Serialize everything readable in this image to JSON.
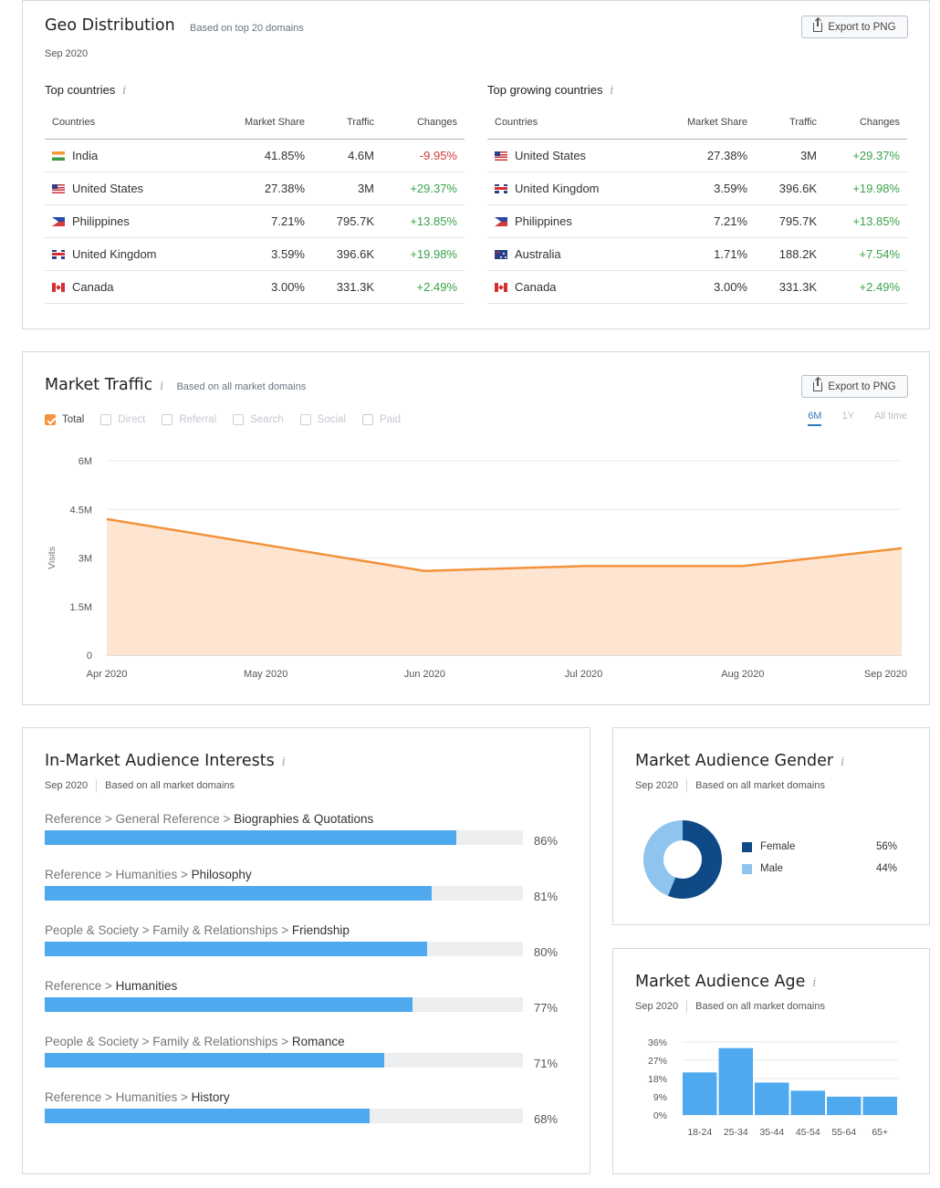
{
  "geo": {
    "title": "Geo Distribution",
    "subtitle": "Based on top 20 domains",
    "date": "Sep 2020",
    "export_label": "Export to PNG",
    "top_countries": {
      "title": "Top countries",
      "headers": [
        "Countries",
        "Market Share",
        "Traffic",
        "Changes"
      ],
      "rows": [
        {
          "flag": "in",
          "country": "India",
          "share": "41.85%",
          "traffic": "4.6M",
          "change": "-9.95%"
        },
        {
          "flag": "us",
          "country": "United States",
          "share": "27.38%",
          "traffic": "3M",
          "change": "+29.37%"
        },
        {
          "flag": "ph",
          "country": "Philippines",
          "share": "7.21%",
          "traffic": "795.7K",
          "change": "+13.85%"
        },
        {
          "flag": "uk",
          "country": "United Kingdom",
          "share": "3.59%",
          "traffic": "396.6K",
          "change": "+19.98%"
        },
        {
          "flag": "ca",
          "country": "Canada",
          "share": "3.00%",
          "traffic": "331.3K",
          "change": "+2.49%"
        }
      ]
    },
    "top_growing": {
      "title": "Top growing countries",
      "headers": [
        "Countries",
        "Market Share",
        "Traffic",
        "Changes"
      ],
      "rows": [
        {
          "flag": "us",
          "country": "United States",
          "share": "27.38%",
          "traffic": "3M",
          "change": "+29.37%"
        },
        {
          "flag": "uk",
          "country": "United Kingdom",
          "share": "3.59%",
          "traffic": "396.6K",
          "change": "+19.98%"
        },
        {
          "flag": "ph",
          "country": "Philippines",
          "share": "7.21%",
          "traffic": "795.7K",
          "change": "+13.85%"
        },
        {
          "flag": "au",
          "country": "Australia",
          "share": "1.71%",
          "traffic": "188.2K",
          "change": "+7.54%"
        },
        {
          "flag": "ca",
          "country": "Canada",
          "share": "3.00%",
          "traffic": "331.3K",
          "change": "+2.49%"
        }
      ]
    }
  },
  "traffic": {
    "title": "Market Traffic",
    "subtitle": "Based on all market domains",
    "export_label": "Export to PNG",
    "legend": [
      {
        "label": "Total",
        "checked": true
      },
      {
        "label": "Direct",
        "checked": false
      },
      {
        "label": "Referral",
        "checked": false
      },
      {
        "label": "Search",
        "checked": false
      },
      {
        "label": "Social",
        "checked": false
      },
      {
        "label": "Paid",
        "checked": false
      }
    ],
    "periods": [
      "6M",
      "1Y",
      "All time"
    ],
    "active_period": "6M",
    "line_color": "#f3923a",
    "fill_color": "#fde5d2"
  },
  "interests": {
    "title": "In-Market Audience Interests",
    "date": "Sep 2020",
    "subtitle": "Based on all market domains",
    "items": [
      {
        "prefix": "Reference > General Reference > ",
        "last": "Biographies & Quotations",
        "value": 86,
        "pct": "86%"
      },
      {
        "prefix": "Reference > Humanities > ",
        "last": "Philosophy",
        "value": 81,
        "pct": "81%"
      },
      {
        "prefix": "People & Society > Family & Relationships > ",
        "last": "Friendship",
        "value": 80,
        "pct": "80%"
      },
      {
        "prefix": "Reference > ",
        "last": "Humanities",
        "value": 77,
        "pct": "77%"
      },
      {
        "prefix": "People & Society > Family & Relationships > ",
        "last": "Romance",
        "value": 71,
        "pct": "71%"
      },
      {
        "prefix": "Reference > Humanities > ",
        "last": "History",
        "value": 68,
        "pct": "68%"
      }
    ],
    "bar_color": "#4fa9ef"
  },
  "gender": {
    "title": "Market Audience Gender",
    "date": "Sep 2020",
    "subtitle": "Based on all market domains",
    "segments": [
      {
        "label": "Female",
        "value": 56,
        "pct": "56%",
        "color": "#0f4a86"
      },
      {
        "label": "Male",
        "value": 44,
        "pct": "44%",
        "color": "#8ec4ee"
      }
    ]
  },
  "age": {
    "title": "Market Audience Age",
    "date": "Sep 2020",
    "subtitle": "Based on all market domains"
  },
  "chart_data": [
    {
      "type": "area",
      "ylabel": "Visits",
      "x": [
        "Apr 2020",
        "May 2020",
        "Jun 2020",
        "Jul 2020",
        "Aug 2020",
        "Sep 2020"
      ],
      "series": [
        {
          "name": "Total",
          "values": [
            4.2,
            3.4,
            2.6,
            2.75,
            2.75,
            3.3
          ]
        }
      ],
      "values_unit": "M",
      "yticks": [
        "0",
        "1.5M",
        "3M",
        "4.5M",
        "6M"
      ],
      "ylim": [
        0,
        6
      ],
      "grid": true
    },
    {
      "type": "bar",
      "categories": [
        "18-24",
        "25-34",
        "35-44",
        "45-54",
        "55-64",
        "65+"
      ],
      "values": [
        21,
        33,
        16,
        12,
        9,
        9
      ],
      "yticks": [
        "0%",
        "9%",
        "18%",
        "27%",
        "36%"
      ],
      "ylim": [
        0,
        36
      ],
      "color": "#4fa9ef",
      "grid": true
    }
  ]
}
